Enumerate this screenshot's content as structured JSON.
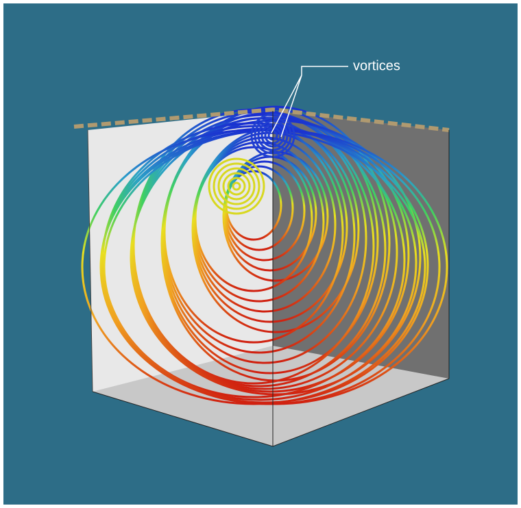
{
  "annotation": "vortices"
}
